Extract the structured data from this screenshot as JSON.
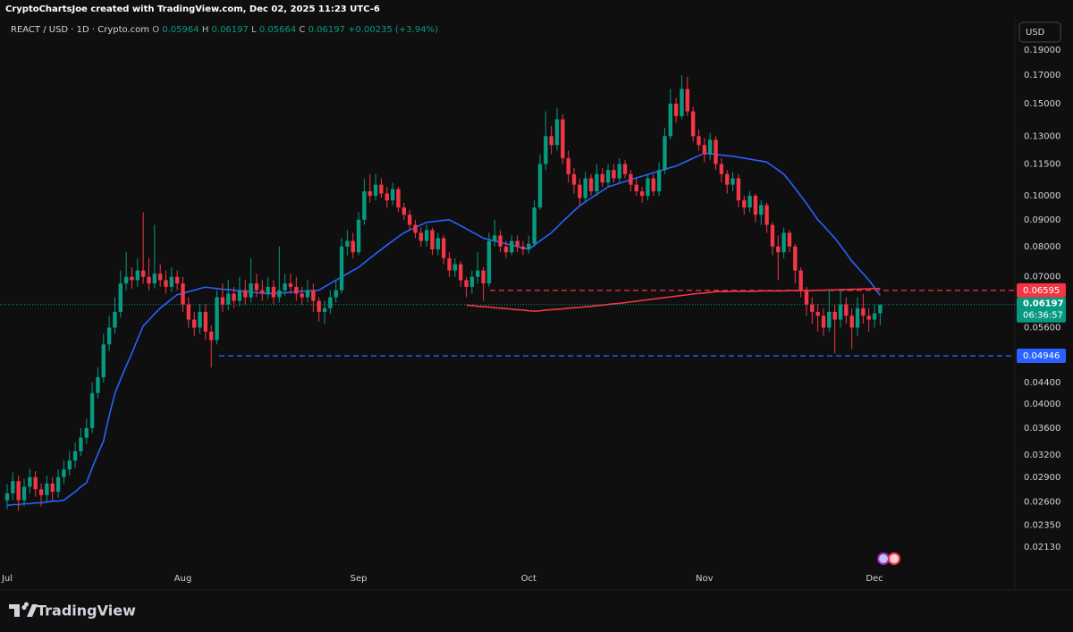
{
  "chart_data": {
    "type": "candlestick",
    "attribution": "CryptoChartsJoe created with TradingView.com, Dec 02, 2025 11:23 UTC-6",
    "title": "REACT / USD · 1D · Crypto.com",
    "ohlc_labels": [
      "O",
      "H",
      "L",
      "C"
    ],
    "change": "+0.00235 (+3.94%)",
    "currency": "USD",
    "countdown": "06:36:57",
    "brand": "TradingView",
    "log_scale": true,
    "grid": false,
    "up_color": "#089981",
    "down_color": "#f23645",
    "ylim": [
      0.0194,
      0.212
    ],
    "yticks": [
      {
        "value": 0.19,
        "label": "0.19000"
      },
      {
        "value": 0.17,
        "label": "0.17000"
      },
      {
        "value": 0.15,
        "label": "0.15000"
      },
      {
        "value": 0.13,
        "label": "0.13000"
      },
      {
        "value": 0.115,
        "label": "0.11500"
      },
      {
        "value": 0.1,
        "label": "0.10000"
      },
      {
        "value": 0.09,
        "label": "0.09000"
      },
      {
        "value": 0.08,
        "label": "0.08000"
      },
      {
        "value": 0.07,
        "label": "0.07000"
      },
      {
        "value": 0.056,
        "label": "0.05600"
      },
      {
        "value": 0.044,
        "label": "0.04400"
      },
      {
        "value": 0.04,
        "label": "0.04000"
      },
      {
        "value": 0.036,
        "label": "0.03600"
      },
      {
        "value": 0.032,
        "label": "0.03200"
      },
      {
        "value": 0.029,
        "label": "0.02900"
      },
      {
        "value": 0.026,
        "label": "0.02600"
      },
      {
        "value": 0.0235,
        "label": "0.02350"
      },
      {
        "value": 0.0213,
        "label": "0.02130"
      }
    ],
    "levels": [
      {
        "value": 0.06595,
        "color": "#f23645"
      },
      {
        "value": 0.04946,
        "color": "#2962ff"
      }
    ],
    "categories": [
      "Jul",
      null,
      null,
      null,
      null,
      null,
      null,
      null,
      null,
      null,
      null,
      null,
      null,
      null,
      null,
      null,
      null,
      null,
      null,
      null,
      null,
      null,
      null,
      null,
      null,
      null,
      null,
      null,
      null,
      null,
      null,
      "Aug",
      null,
      null,
      null,
      null,
      null,
      null,
      null,
      null,
      null,
      null,
      null,
      null,
      null,
      null,
      null,
      null,
      null,
      null,
      null,
      null,
      null,
      null,
      null,
      null,
      null,
      null,
      null,
      null,
      null,
      null,
      "Sep",
      null,
      null,
      null,
      null,
      null,
      null,
      null,
      null,
      null,
      null,
      null,
      null,
      null,
      null,
      null,
      null,
      null,
      null,
      null,
      null,
      null,
      null,
      null,
      null,
      null,
      null,
      null,
      null,
      null,
      "Oct",
      null,
      null,
      null,
      null,
      null,
      null,
      null,
      null,
      null,
      null,
      null,
      null,
      null,
      null,
      null,
      null,
      null,
      null,
      null,
      null,
      null,
      null,
      null,
      null,
      null,
      null,
      null,
      null,
      null,
      null,
      "Nov",
      null,
      null,
      null,
      null,
      null,
      null,
      null,
      null,
      null,
      null,
      null,
      null,
      null,
      null,
      null,
      null,
      null,
      null,
      null,
      null,
      null,
      null,
      null,
      null,
      null,
      null,
      null,
      null,
      null,
      "Dec",
      null
    ],
    "open": [
      0.0262,
      0.027,
      0.0285,
      0.0262,
      0.0278,
      0.029,
      0.0275,
      0.0268,
      0.0282,
      0.0272,
      0.029,
      0.03,
      0.0312,
      0.0325,
      0.0345,
      0.036,
      0.042,
      0.045,
      0.052,
      0.056,
      0.06,
      0.068,
      0.07,
      0.069,
      0.072,
      0.07,
      0.068,
      0.071,
      0.069,
      0.067,
      0.07,
      0.068,
      0.062,
      0.058,
      0.056,
      0.06,
      0.055,
      0.053,
      0.064,
      0.062,
      0.065,
      0.063,
      0.066,
      0.064,
      0.068,
      0.066,
      0.065,
      0.067,
      0.064,
      0.066,
      0.068,
      0.067,
      0.065,
      0.064,
      0.066,
      0.063,
      0.06,
      0.061,
      0.064,
      0.066,
      0.08,
      0.082,
      0.078,
      0.09,
      0.102,
      0.1,
      0.105,
      0.101,
      0.098,
      0.103,
      0.095,
      0.092,
      0.088,
      0.085,
      0.082,
      0.086,
      0.079,
      0.083,
      0.076,
      0.072,
      0.074,
      0.069,
      0.067,
      0.07,
      0.072,
      0.068,
      0.082,
      0.084,
      0.08,
      0.078,
      0.082,
      0.08,
      0.079,
      0.081,
      0.095,
      0.115,
      0.13,
      0.125,
      0.14,
      0.118,
      0.11,
      0.105,
      0.099,
      0.108,
      0.102,
      0.11,
      0.106,
      0.112,
      0.108,
      0.115,
      0.11,
      0.105,
      0.102,
      0.1,
      0.108,
      0.102,
      0.112,
      0.13,
      0.15,
      0.142,
      0.16,
      0.145,
      0.13,
      0.125,
      0.12,
      0.128,
      0.115,
      0.11,
      0.105,
      0.108,
      0.098,
      0.095,
      0.1,
      0.092,
      0.096,
      0.088,
      0.08,
      0.078,
      0.085,
      0.08,
      0.072,
      0.066,
      0.062,
      0.06,
      0.059,
      0.056,
      0.06,
      0.058,
      0.062,
      0.059,
      0.056,
      0.061,
      0.059,
      0.058,
      0.05964
    ],
    "high": [
      0.0281,
      0.0296,
      0.0292,
      0.0288,
      0.0301,
      0.0298,
      0.0282,
      0.0292,
      0.029,
      0.03,
      0.0312,
      0.0325,
      0.0338,
      0.036,
      0.0375,
      0.044,
      0.047,
      0.0545,
      0.059,
      0.064,
      0.072,
      0.078,
      0.073,
      0.076,
      0.093,
      0.076,
      0.088,
      0.074,
      0.072,
      0.073,
      0.072,
      0.07,
      0.064,
      0.06,
      0.062,
      0.062,
      0.0565,
      0.066,
      0.068,
      0.069,
      0.067,
      0.07,
      0.069,
      0.076,
      0.071,
      0.069,
      0.07,
      0.069,
      0.08,
      0.071,
      0.071,
      0.07,
      0.067,
      0.069,
      0.068,
      0.064,
      0.063,
      0.066,
      0.069,
      0.083,
      0.086,
      0.085,
      0.093,
      0.108,
      0.11,
      0.11,
      0.108,
      0.104,
      0.106,
      0.104,
      0.097,
      0.094,
      0.09,
      0.087,
      0.088,
      0.087,
      0.085,
      0.084,
      0.078,
      0.076,
      0.075,
      0.07,
      0.072,
      0.078,
      0.073,
      0.085,
      0.09,
      0.086,
      0.082,
      0.084,
      0.084,
      0.082,
      0.084,
      0.098,
      0.12,
      0.145,
      0.136,
      0.147,
      0.143,
      0.122,
      0.113,
      0.108,
      0.111,
      0.11,
      0.115,
      0.113,
      0.115,
      0.115,
      0.118,
      0.117,
      0.112,
      0.108,
      0.104,
      0.11,
      0.11,
      0.116,
      0.135,
      0.16,
      0.154,
      0.17,
      0.169,
      0.148,
      0.134,
      0.129,
      0.132,
      0.13,
      0.118,
      0.112,
      0.111,
      0.11,
      0.1,
      0.102,
      0.101,
      0.098,
      0.097,
      0.089,
      0.084,
      0.087,
      0.086,
      0.081,
      0.073,
      0.067,
      0.064,
      0.062,
      0.061,
      0.066,
      0.062,
      0.066,
      0.064,
      0.061,
      0.064,
      0.065,
      0.061,
      0.062,
      0.06197
    ],
    "low": [
      0.0252,
      0.0262,
      0.025,
      0.0255,
      0.027,
      0.0266,
      0.0255,
      0.026,
      0.0262,
      0.0265,
      0.0282,
      0.0292,
      0.0302,
      0.0318,
      0.0336,
      0.0352,
      0.041,
      0.044,
      0.0505,
      0.0545,
      0.0585,
      0.066,
      0.0665,
      0.067,
      0.068,
      0.066,
      0.0665,
      0.067,
      0.065,
      0.0655,
      0.066,
      0.06,
      0.056,
      0.054,
      0.0545,
      0.053,
      0.047,
      0.052,
      0.06,
      0.0605,
      0.061,
      0.0615,
      0.062,
      0.0625,
      0.064,
      0.063,
      0.0635,
      0.062,
      0.0625,
      0.0645,
      0.065,
      0.063,
      0.062,
      0.0625,
      0.06,
      0.0575,
      0.057,
      0.0595,
      0.0625,
      0.065,
      0.077,
      0.076,
      0.077,
      0.088,
      0.097,
      0.098,
      0.099,
      0.095,
      0.096,
      0.093,
      0.09,
      0.086,
      0.083,
      0.08,
      0.08,
      0.077,
      0.077,
      0.074,
      0.07,
      0.07,
      0.067,
      0.064,
      0.065,
      0.068,
      0.063,
      0.067,
      0.08,
      0.078,
      0.076,
      0.077,
      0.078,
      0.077,
      0.0775,
      0.08,
      0.094,
      0.112,
      0.12,
      0.122,
      0.115,
      0.106,
      0.101,
      0.096,
      0.097,
      0.1,
      0.1,
      0.104,
      0.104,
      0.106,
      0.106,
      0.108,
      0.102,
      0.1,
      0.097,
      0.098,
      0.1,
      0.1,
      0.11,
      0.128,
      0.138,
      0.14,
      0.142,
      0.127,
      0.122,
      0.116,
      0.117,
      0.112,
      0.106,
      0.101,
      0.102,
      0.095,
      0.092,
      0.093,
      0.089,
      0.088,
      0.085,
      0.077,
      0.069,
      0.076,
      0.078,
      0.068,
      0.064,
      0.059,
      0.057,
      0.055,
      0.054,
      0.055,
      0.05,
      0.056,
      0.057,
      0.051,
      0.054,
      0.057,
      0.055,
      0.056,
      0.05664
    ],
    "close": [
      0.027,
      0.0285,
      0.0262,
      0.0278,
      0.029,
      0.0275,
      0.0268,
      0.0282,
      0.0272,
      0.029,
      0.03,
      0.0312,
      0.0325,
      0.0345,
      0.036,
      0.042,
      0.045,
      0.052,
      0.056,
      0.06,
      0.068,
      0.07,
      0.069,
      0.072,
      0.07,
      0.068,
      0.071,
      0.069,
      0.067,
      0.07,
      0.068,
      0.062,
      0.058,
      0.056,
      0.06,
      0.055,
      0.053,
      0.064,
      0.062,
      0.065,
      0.063,
      0.066,
      0.064,
      0.068,
      0.066,
      0.065,
      0.067,
      0.064,
      0.066,
      0.068,
      0.067,
      0.065,
      0.064,
      0.066,
      0.063,
      0.06,
      0.061,
      0.064,
      0.066,
      0.08,
      0.082,
      0.078,
      0.09,
      0.102,
      0.1,
      0.105,
      0.101,
      0.098,
      0.103,
      0.095,
      0.092,
      0.088,
      0.085,
      0.082,
      0.086,
      0.079,
      0.083,
      0.076,
      0.072,
      0.074,
      0.069,
      0.067,
      0.07,
      0.072,
      0.068,
      0.082,
      0.084,
      0.08,
      0.078,
      0.082,
      0.08,
      0.079,
      0.081,
      0.095,
      0.115,
      0.13,
      0.125,
      0.14,
      0.118,
      0.11,
      0.105,
      0.099,
      0.108,
      0.102,
      0.11,
      0.106,
      0.112,
      0.108,
      0.115,
      0.11,
      0.105,
      0.102,
      0.1,
      0.108,
      0.102,
      0.112,
      0.13,
      0.15,
      0.142,
      0.16,
      0.145,
      0.13,
      0.125,
      0.12,
      0.128,
      0.115,
      0.11,
      0.105,
      0.108,
      0.098,
      0.095,
      0.1,
      0.092,
      0.096,
      0.088,
      0.08,
      0.078,
      0.085,
      0.08,
      0.072,
      0.066,
      0.062,
      0.06,
      0.059,
      0.056,
      0.06,
      0.058,
      0.062,
      0.059,
      0.056,
      0.061,
      0.059,
      0.058,
      0.05962,
      0.06197
    ],
    "lines": [
      {
        "color": "#2962ff",
        "values": [
          0.0256,
          0.0257,
          0.0257,
          0.0258,
          0.0258,
          0.0259,
          0.0259,
          0.026,
          0.0261,
          0.0261,
          0.0262,
          0.0267,
          0.0272,
          0.0278,
          0.0283,
          0.0302,
          0.0321,
          0.034,
          0.038,
          0.0419,
          0.0446,
          0.0473,
          0.05,
          0.0532,
          0.0564,
          0.0579,
          0.0595,
          0.061,
          0.0622,
          0.0635,
          0.0647,
          0.0651,
          0.0656,
          0.066,
          0.0665,
          0.0669,
          0.0667,
          0.0665,
          0.0663,
          0.0662,
          0.066,
          0.0658,
          0.0657,
          0.0655,
          0.0653,
          0.0652,
          0.065,
          0.0651,
          0.0652,
          0.0653,
          0.0654,
          0.0656,
          0.0657,
          0.0658,
          0.0659,
          0.066,
          0.067,
          0.068,
          0.069,
          0.07,
          0.071,
          0.072,
          0.073,
          0.0745,
          0.076,
          0.0775,
          0.079,
          0.0805,
          0.082,
          0.0835,
          0.085,
          0.086,
          0.087,
          0.088,
          0.089,
          0.0892,
          0.0895,
          0.0898,
          0.09,
          0.0888,
          0.0877,
          0.0865,
          0.0853,
          0.0842,
          0.083,
          0.0825,
          0.082,
          0.0815,
          0.081,
          0.0805,
          0.08,
          0.0795,
          0.079,
          0.0805,
          0.082,
          0.0835,
          0.085,
          0.0871,
          0.0893,
          0.0914,
          0.0936,
          0.0957,
          0.0974,
          0.099,
          0.1007,
          0.1023,
          0.104,
          0.1048,
          0.1057,
          0.1065,
          0.1073,
          0.1082,
          0.109,
          0.1098,
          0.1107,
          0.1115,
          0.1123,
          0.1132,
          0.114,
          0.1153,
          0.1166,
          0.118,
          0.1193,
          0.1206,
          0.1203,
          0.12,
          0.1196,
          0.1193,
          0.119,
          0.1185,
          0.118,
          0.1175,
          0.117,
          0.1165,
          0.116,
          0.114,
          0.112,
          0.11,
          0.1067,
          0.1033,
          0.1,
          0.0967,
          0.0933,
          0.09,
          0.0877,
          0.0853,
          0.083,
          0.0803,
          0.0777,
          0.075,
          0.073,
          0.071,
          0.069,
          0.0668,
          0.0645
        ]
      },
      {
        "color": "#f23645",
        "values": [
          null,
          null,
          null,
          null,
          null,
          null,
          null,
          null,
          null,
          null,
          null,
          null,
          null,
          null,
          null,
          null,
          null,
          null,
          null,
          null,
          null,
          null,
          null,
          null,
          null,
          null,
          null,
          null,
          null,
          null,
          null,
          null,
          null,
          null,
          null,
          null,
          null,
          null,
          null,
          null,
          null,
          null,
          null,
          null,
          null,
          null,
          null,
          null,
          null,
          null,
          null,
          null,
          null,
          null,
          null,
          null,
          null,
          null,
          null,
          null,
          null,
          null,
          null,
          null,
          null,
          null,
          null,
          null,
          null,
          null,
          null,
          null,
          null,
          null,
          null,
          null,
          null,
          null,
          null,
          null,
          null,
          0.0618,
          0.0617,
          0.0615,
          0.0614,
          0.0613,
          0.0611,
          0.061,
          0.0609,
          0.0607,
          0.0606,
          0.0605,
          0.0603,
          0.0602,
          0.0603,
          0.0605,
          0.0606,
          0.0607,
          0.0608,
          0.061,
          0.0611,
          0.0612,
          0.0614,
          0.0615,
          0.0617,
          0.0618,
          0.062,
          0.0622,
          0.0623,
          0.0625,
          0.0627,
          0.0629,
          0.0631,
          0.0633,
          0.0635,
          0.0637,
          0.0639,
          0.0641,
          0.0643,
          0.0645,
          0.0647,
          0.0649,
          0.0651,
          0.0652,
          0.0654,
          0.0656,
          0.0656,
          0.0656,
          0.0657,
          0.0657,
          0.0657,
          0.0657,
          0.0657,
          0.0658,
          0.0658,
          0.0658,
          0.0658,
          0.0658,
          0.0659,
          0.0659,
          0.0659,
          0.0659,
          0.0659,
          0.066,
          0.066,
          0.0661,
          0.0661,
          0.0662,
          0.0662,
          0.0663,
          0.0663,
          0.0664,
          0.0664,
          0.0665,
          0.0665
        ]
      }
    ]
  }
}
